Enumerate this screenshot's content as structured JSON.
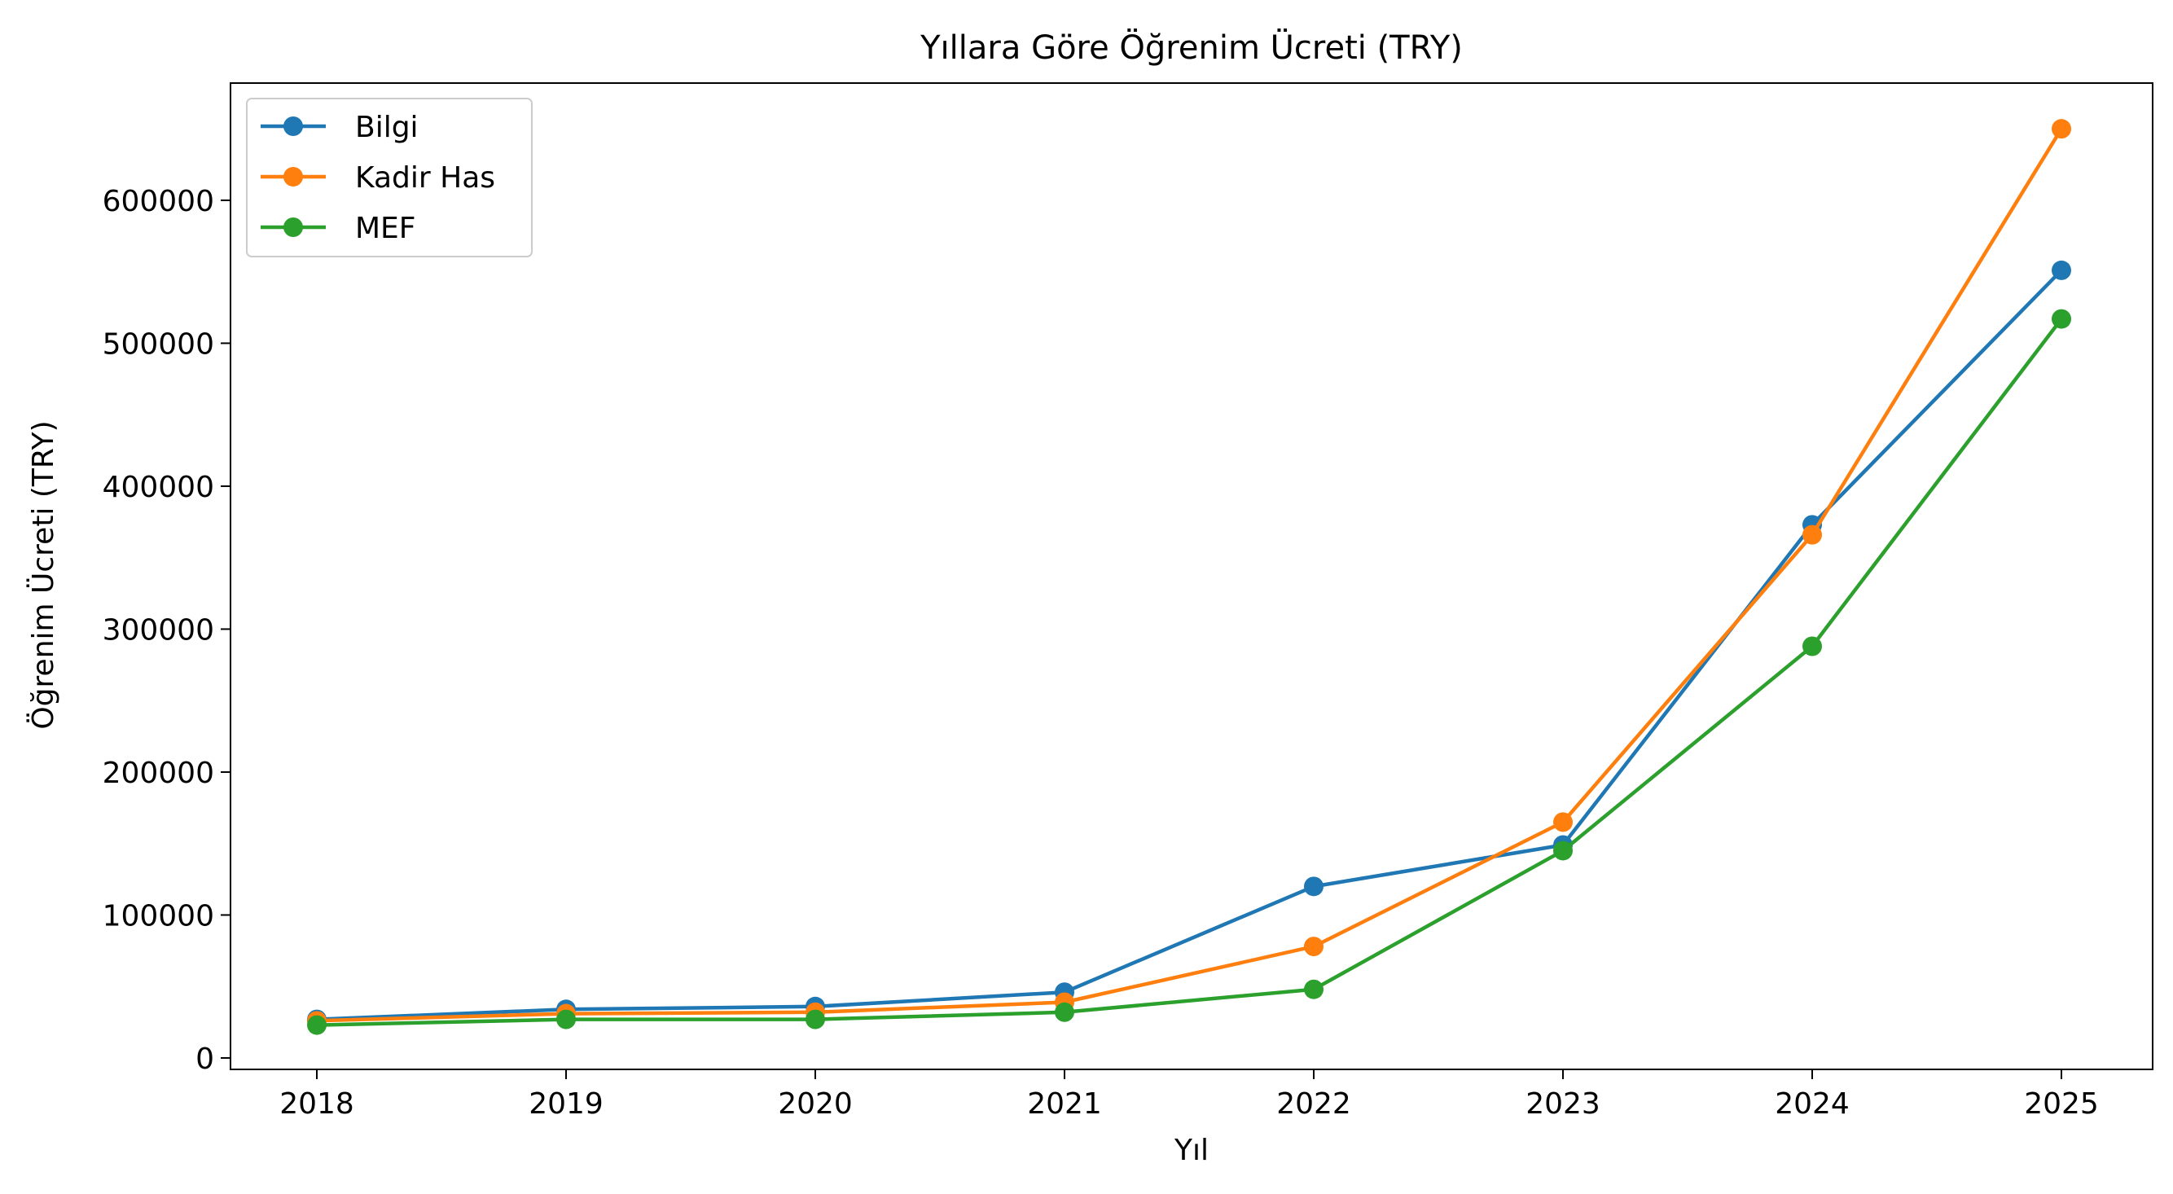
{
  "chart_data": {
    "type": "line",
    "title": "Yıllara Göre Öğrenim Ücreti (TRY)",
    "xlabel": "Yıl",
    "ylabel": "Öğrenim Ücreti (TRY)",
    "categories": [
      "2018",
      "2019",
      "2020",
      "2021",
      "2022",
      "2023",
      "2024",
      "2025"
    ],
    "x_ticks": [
      "2018",
      "2019",
      "2020",
      "2021",
      "2022",
      "2023",
      "2024",
      "2025"
    ],
    "y_ticks": [
      "0",
      "100000",
      "200000",
      "300000",
      "400000",
      "500000",
      "600000"
    ],
    "y_tick_values": [
      0,
      100000,
      200000,
      300000,
      400000,
      500000,
      600000
    ],
    "ylim": [
      -8000,
      682000
    ],
    "grid": false,
    "legend_position": "top-left",
    "series": [
      {
        "name": "Bilgi",
        "color": "#1f77b4",
        "values": [
          27000,
          34000,
          36000,
          46000,
          120000,
          149000,
          373000,
          551000
        ]
      },
      {
        "name": "Kadir Has",
        "color": "#ff7f0e",
        "values": [
          26000,
          31000,
          32000,
          39000,
          78000,
          165000,
          366000,
          650000
        ]
      },
      {
        "name": "MEF",
        "color": "#2ca02c",
        "values": [
          23000,
          27000,
          27000,
          32000,
          48000,
          145000,
          288000,
          517000
        ]
      }
    ]
  }
}
